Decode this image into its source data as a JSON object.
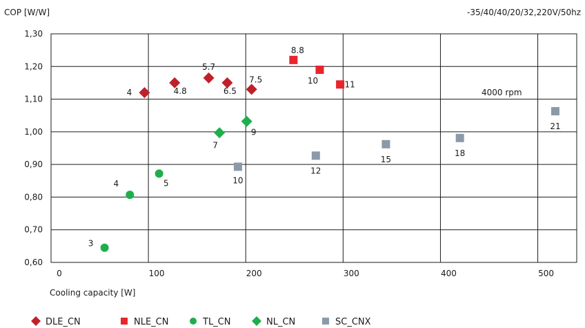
{
  "chart_data": {
    "type": "scatter",
    "ylabel": "COP [W/W]",
    "xlabel": "Cooling capacity [W]",
    "condition_note": "-35/40/40/20/32,220V/50hz",
    "annotation": "4000 rpm",
    "xlim": [
      0,
      540
    ],
    "ylim": [
      0.6,
      1.3
    ],
    "x_ticks": [
      "0",
      "100",
      "200",
      "300",
      "400",
      "500"
    ],
    "y_ticks": [
      "0,60",
      "0,70",
      "0,80",
      "0,90",
      "1,00",
      "1,10",
      "1,20",
      "1,30"
    ],
    "grid": true,
    "legend_position": "bottom",
    "series": [
      {
        "name": "DLE_CN",
        "marker": "diamond",
        "color": "#c0202a",
        "points": [
          {
            "x": 96,
            "y": 1.12,
            "label": "4"
          },
          {
            "x": 127,
            "y": 1.15,
            "label": "4.8"
          },
          {
            "x": 162,
            "y": 1.165,
            "label": "5.7"
          },
          {
            "x": 181,
            "y": 1.15,
            "label": "6.5"
          },
          {
            "x": 206,
            "y": 1.13,
            "label": "7.5"
          }
        ]
      },
      {
        "name": "NLE_CN",
        "marker": "square",
        "color": "#e8252d",
        "points": [
          {
            "x": 249,
            "y": 1.22,
            "label": "8.8"
          },
          {
            "x": 276,
            "y": 1.19,
            "label": "10"
          },
          {
            "x": 297,
            "y": 1.145,
            "label": "11"
          }
        ]
      },
      {
        "name": "TL_CN",
        "marker": "circle",
        "color": "#1fae4b",
        "points": [
          {
            "x": 55,
            "y": 0.645,
            "label": "3"
          },
          {
            "x": 81,
            "y": 0.807,
            "label": "4"
          },
          {
            "x": 111,
            "y": 0.872,
            "label": "5"
          }
        ]
      },
      {
        "name": "NL_CN",
        "marker": "diamond",
        "color": "#1fae4b",
        "points": [
          {
            "x": 173,
            "y": 0.997,
            "label": "7"
          },
          {
            "x": 201,
            "y": 1.032,
            "label": "9"
          }
        ]
      },
      {
        "name": "SC_CNX",
        "marker": "square",
        "color": "#8a9aa8",
        "points": [
          {
            "x": 192,
            "y": 0.893,
            "label": "10"
          },
          {
            "x": 272,
            "y": 0.927,
            "label": "12"
          },
          {
            "x": 344,
            "y": 0.962,
            "label": "15"
          },
          {
            "x": 420,
            "y": 0.981,
            "label": "18"
          },
          {
            "x": 518,
            "y": 1.063,
            "label": "21"
          }
        ]
      }
    ]
  }
}
